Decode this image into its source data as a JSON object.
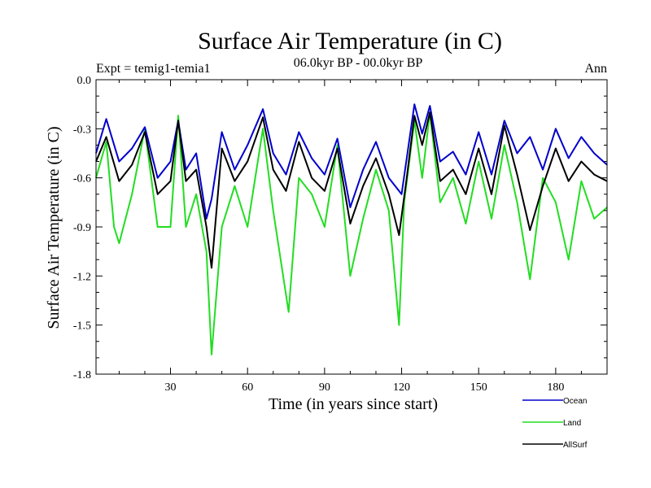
{
  "chart_data": {
    "type": "line",
    "title": "Surface Air Temperature (in C)",
    "subtitle": "06.0kyr BP - 00.0kyr BP",
    "left_label": "Expt = temig1-temia1",
    "right_label": "Ann",
    "xlabel": "Time (in years since start)",
    "ylabel": "Surface Air Temperature (in C)",
    "xlim": [
      1,
      200
    ],
    "ylim": [
      -1.8,
      0.0
    ],
    "x_ticks": [
      30,
      60,
      90,
      120,
      150,
      180
    ],
    "y_ticks": [
      0.0,
      -0.3,
      -0.6,
      -0.9,
      -1.2,
      -1.5,
      -1.8
    ],
    "x_tick_labels": [
      "30",
      "60",
      "90",
      "120",
      "150",
      "180"
    ],
    "y_tick_labels": [
      "0.0",
      "-0.3",
      "-0.6",
      "-0.9",
      "-1.2",
      "-1.5",
      "-1.8"
    ],
    "legend_position": "bottom-right, below plot",
    "series": [
      {
        "name": "Ocean",
        "color": "#0000cc",
        "x": [
          1,
          5,
          10,
          15,
          20,
          25,
          30,
          33,
          36,
          40,
          44,
          46,
          50,
          55,
          60,
          66,
          70,
          75,
          80,
          85,
          90,
          95,
          100,
          105,
          110,
          115,
          120,
          125,
          128,
          131,
          135,
          140,
          145,
          150,
          155,
          160,
          165,
          170,
          175,
          180,
          185,
          190,
          195,
          200
        ],
        "values": [
          -0.45,
          -0.24,
          -0.5,
          -0.42,
          -0.29,
          -0.6,
          -0.5,
          -0.25,
          -0.55,
          -0.45,
          -0.85,
          -0.73,
          -0.32,
          -0.55,
          -0.4,
          -0.18,
          -0.45,
          -0.58,
          -0.32,
          -0.48,
          -0.58,
          -0.36,
          -0.78,
          -0.55,
          -0.38,
          -0.6,
          -0.7,
          -0.15,
          -0.33,
          -0.16,
          -0.5,
          -0.44,
          -0.58,
          -0.32,
          -0.58,
          -0.25,
          -0.45,
          -0.35,
          -0.55,
          -0.3,
          -0.48,
          -0.35,
          -0.45,
          -0.52
        ]
      },
      {
        "name": "Land",
        "color": "#22dd22",
        "x": [
          1,
          5,
          8,
          10,
          15,
          20,
          25,
          30,
          33,
          36,
          40,
          44,
          46,
          50,
          55,
          60,
          66,
          70,
          76,
          80,
          85,
          90,
          95,
          100,
          105,
          110,
          115,
          119,
          121,
          125,
          128,
          131,
          135,
          140,
          145,
          150,
          155,
          160,
          165,
          170,
          175,
          180,
          185,
          190,
          195,
          200
        ],
        "values": [
          -0.6,
          -0.38,
          -0.9,
          -1.0,
          -0.7,
          -0.3,
          -0.9,
          -0.9,
          -0.22,
          -0.9,
          -0.7,
          -1.05,
          -1.68,
          -0.9,
          -0.65,
          -0.9,
          -0.3,
          -0.8,
          -1.42,
          -0.6,
          -0.7,
          -0.9,
          -0.4,
          -1.2,
          -0.85,
          -0.55,
          -0.8,
          -1.5,
          -0.75,
          -0.25,
          -0.6,
          -0.2,
          -0.75,
          -0.6,
          -0.88,
          -0.5,
          -0.85,
          -0.4,
          -0.75,
          -1.22,
          -0.6,
          -0.75,
          -1.1,
          -0.62,
          -0.85,
          -0.78
        ]
      },
      {
        "name": "AllSurf",
        "color": "#000000",
        "x": [
          1,
          5,
          10,
          15,
          20,
          25,
          30,
          33,
          36,
          40,
          44,
          46,
          50,
          55,
          60,
          66,
          70,
          75,
          80,
          85,
          90,
          95,
          100,
          105,
          110,
          115,
          119,
          122,
          125,
          128,
          131,
          135,
          140,
          145,
          150,
          155,
          160,
          165,
          170,
          175,
          180,
          185,
          190,
          195,
          200
        ],
        "values": [
          -0.5,
          -0.35,
          -0.62,
          -0.52,
          -0.32,
          -0.7,
          -0.62,
          -0.25,
          -0.62,
          -0.55,
          -0.9,
          -1.15,
          -0.42,
          -0.62,
          -0.5,
          -0.23,
          -0.55,
          -0.68,
          -0.38,
          -0.6,
          -0.68,
          -0.42,
          -0.88,
          -0.65,
          -0.48,
          -0.7,
          -0.95,
          -0.6,
          -0.22,
          -0.4,
          -0.2,
          -0.62,
          -0.55,
          -0.7,
          -0.42,
          -0.7,
          -0.28,
          -0.58,
          -0.92,
          -0.65,
          -0.42,
          -0.62,
          -0.5,
          -0.58,
          -0.62
        ]
      }
    ]
  }
}
